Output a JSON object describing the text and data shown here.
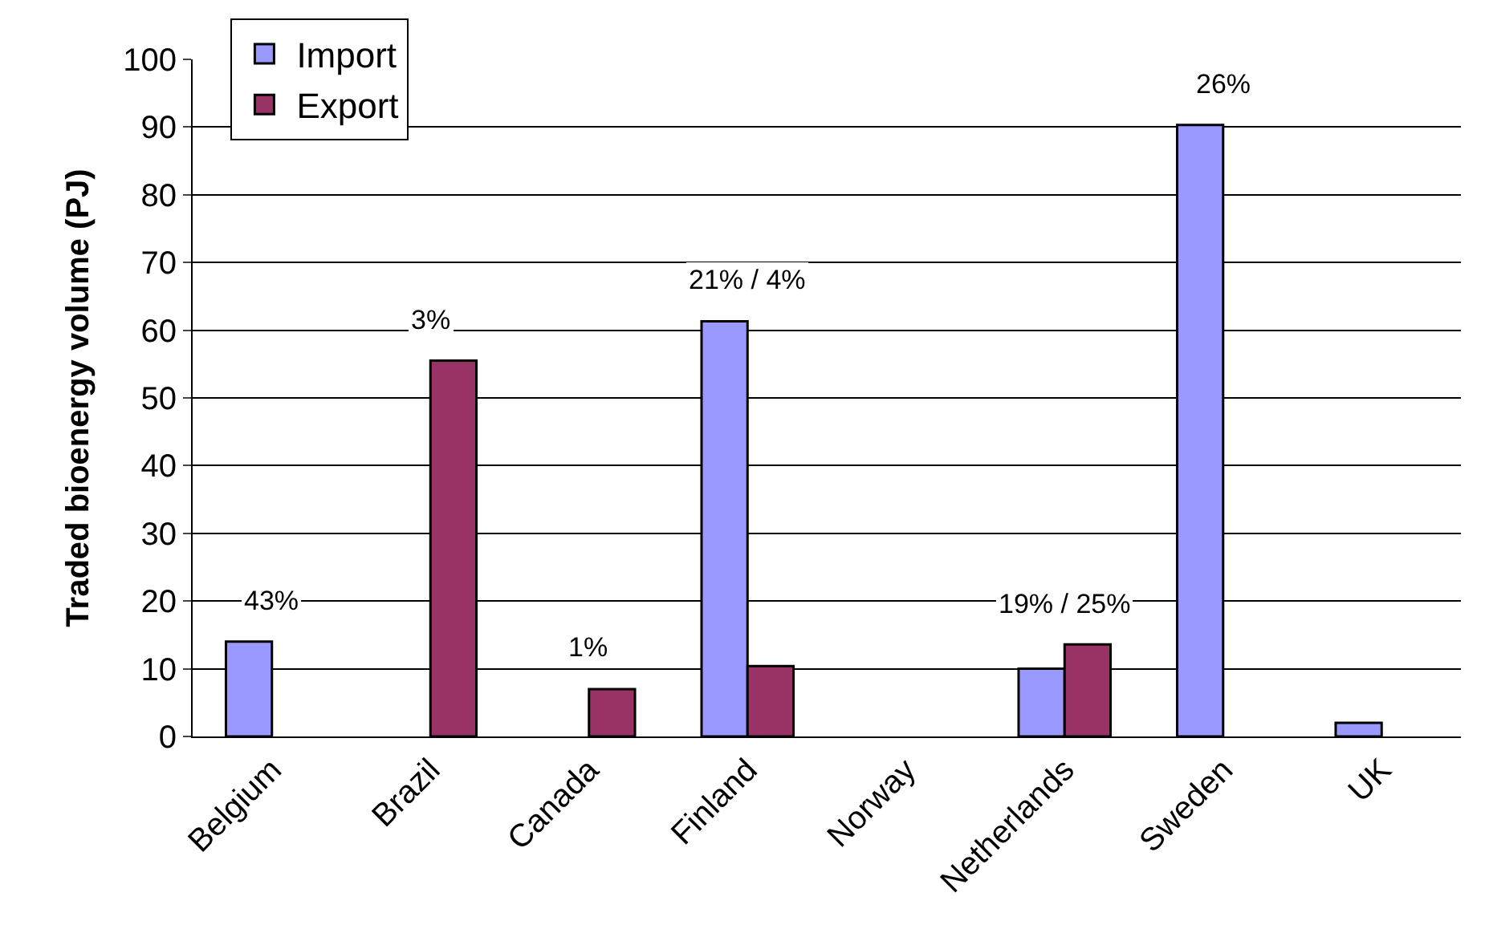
{
  "chart_data": {
    "type": "bar",
    "ylabel": "Traded bioenergy volume (PJ)",
    "categories": [
      "Belgium",
      "Brazil",
      "Canada",
      "Finland",
      "Norway",
      "Netherlands",
      "Sweden",
      "UK"
    ],
    "series": [
      {
        "name": "Import",
        "color": "#9999ff",
        "values": [
          14,
          null,
          null,
          61.3,
          null,
          10,
          90.3,
          2
        ]
      },
      {
        "name": "Export",
        "color": "#993366",
        "values": [
          null,
          55.5,
          7,
          10.4,
          null,
          13.6,
          null,
          null
        ]
      }
    ],
    "ylim": [
      0,
      100
    ],
    "yticks": [
      0,
      10,
      20,
      30,
      40,
      50,
      60,
      70,
      80,
      90,
      100
    ],
    "grid": "y",
    "legend": "top left",
    "annotations": [
      {
        "text": "43%",
        "x": "Belgium",
        "y": 14
      },
      {
        "text": "3%",
        "x": "Brazil",
        "y": 55.5
      },
      {
        "text": "1%",
        "x": "Canada",
        "y": 7
      },
      {
        "text": "21% / 4%",
        "x": "Finland",
        "y": 61.3
      },
      {
        "text": "19% / 25%",
        "x": "Netherlands",
        "y": 13.6
      },
      {
        "text": "26%",
        "x": "Sweden",
        "y": 90.3
      }
    ]
  }
}
